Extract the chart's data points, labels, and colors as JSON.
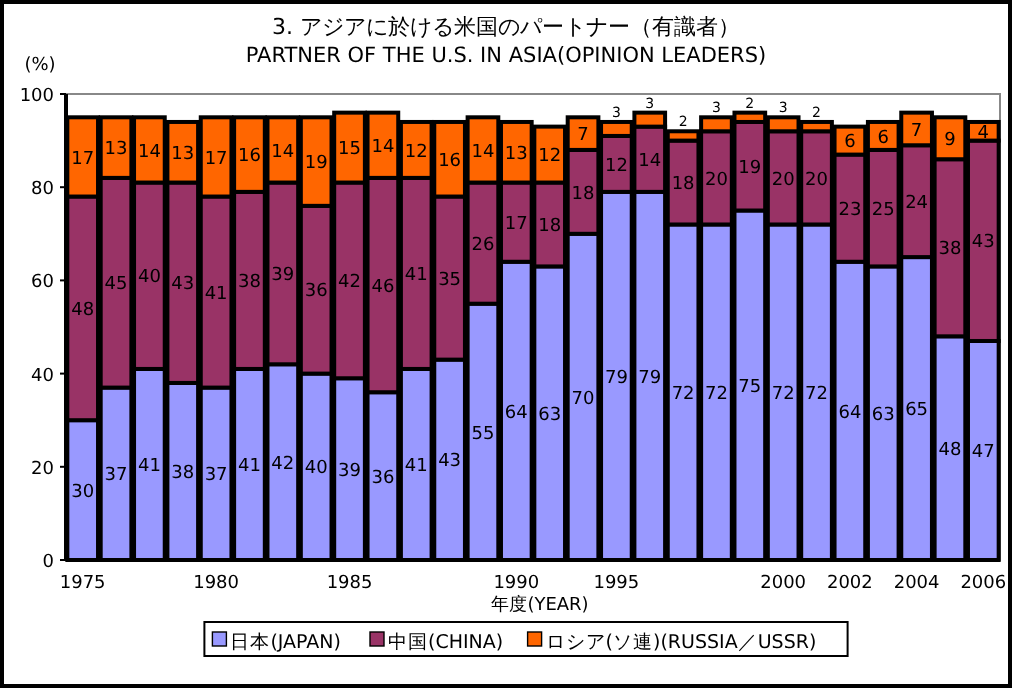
{
  "chart_data": {
    "type": "bar",
    "stacked": true,
    "title": "3. アジアに於ける米国のパートナー（有識者）",
    "subtitle": "PARTNER OF THE U.S. IN ASIA(OPINION LEADERS)",
    "xlabel": "年度(YEAR)",
    "ylabel": "(%)",
    "categories": [
      "1975",
      null,
      null,
      null,
      "1980",
      null,
      null,
      null,
      "1985",
      null,
      null,
      null,
      null,
      "1990",
      null,
      null,
      "1995",
      null,
      null,
      null,
      null,
      "2000",
      null,
      "2002",
      null,
      "2004",
      null,
      "2006"
    ],
    "series": [
      {
        "name": "日本(JAPAN)",
        "color": "#9999ff",
        "values": [
          30,
          37,
          41,
          38,
          37,
          41,
          42,
          40,
          39,
          36,
          41,
          43,
          55,
          64,
          63,
          70,
          79,
          79,
          72,
          72,
          75,
          72,
          72,
          64,
          63,
          65,
          48,
          47
        ]
      },
      {
        "name": "中国(CHINA)",
        "color": "#993366",
        "values": [
          48,
          45,
          40,
          43,
          41,
          38,
          39,
          36,
          42,
          46,
          41,
          35,
          26,
          17,
          18,
          18,
          12,
          14,
          18,
          20,
          19,
          20,
          20,
          23,
          25,
          24,
          38,
          43
        ]
      },
      {
        "name": "ロシア(ソ連)(RUSSIA／USSR)",
        "color": "#ff6600",
        "values": [
          17,
          13,
          14,
          13,
          17,
          16,
          14,
          19,
          15,
          14,
          12,
          16,
          14,
          13,
          12,
          7,
          3,
          3,
          2,
          3,
          2,
          3,
          2,
          6,
          6,
          7,
          9,
          4
        ]
      }
    ],
    "ylim": [
      0,
      100
    ],
    "yticks": [
      0,
      20,
      40,
      60,
      80,
      100
    ],
    "data_labels": true,
    "grid": false,
    "legend": "bottom"
  }
}
